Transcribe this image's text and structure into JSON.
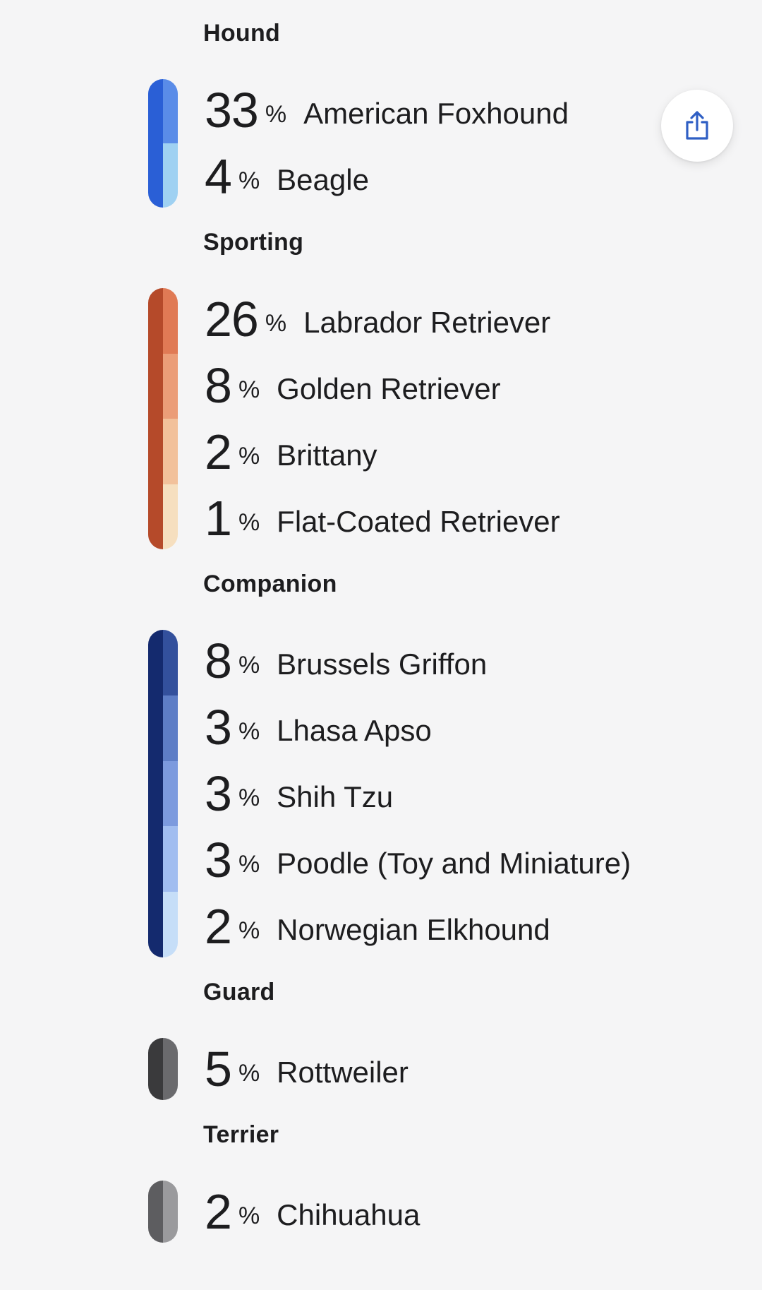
{
  "groups": [
    {
      "title": "Hound",
      "main_color": "#2a5fd6",
      "breeds": [
        {
          "percent": "33",
          "name": "American Foxhound",
          "color": "#5a8ce8"
        },
        {
          "percent": "4",
          "name": "Beagle",
          "color": "#9fd1f2"
        }
      ]
    },
    {
      "title": "Sporting",
      "main_color": "#b54a2a",
      "breeds": [
        {
          "percent": "26",
          "name": "Labrador Retriever",
          "color": "#e07a55"
        },
        {
          "percent": "8",
          "name": "Golden Retriever",
          "color": "#eb9d78"
        },
        {
          "percent": "2",
          "name": "Brittany",
          "color": "#f2c19b"
        },
        {
          "percent": "1",
          "name": "Flat-Coated Retriever",
          "color": "#f6dfbf"
        }
      ]
    },
    {
      "title": "Companion",
      "main_color": "#142a6e",
      "breeds": [
        {
          "percent": "8",
          "name": "Brussels Griffon",
          "color": "#33509c"
        },
        {
          "percent": "3",
          "name": "Lhasa Apso",
          "color": "#5d7dc6"
        },
        {
          "percent": "3",
          "name": "Shih Tzu",
          "color": "#7c9ade"
        },
        {
          "percent": "3",
          "name": "Poodle (Toy and Miniature)",
          "color": "#a1bdf0"
        },
        {
          "percent": "2",
          "name": "Norwegian Elkhound",
          "color": "#c6def8"
        }
      ]
    },
    {
      "title": "Guard",
      "main_color": "#3a3a3c",
      "breeds": [
        {
          "percent": "5",
          "name": "Rottweiler",
          "color": "#6a6a6d"
        }
      ]
    },
    {
      "title": "Terrier",
      "main_color": "#5d5d60",
      "breeds": [
        {
          "percent": "2",
          "name": "Chihuahua",
          "color": "#9a9a9d"
        }
      ]
    }
  ],
  "share": {
    "icon": "share-icon",
    "color": "#2f5fc4"
  },
  "percent_symbol": "%"
}
